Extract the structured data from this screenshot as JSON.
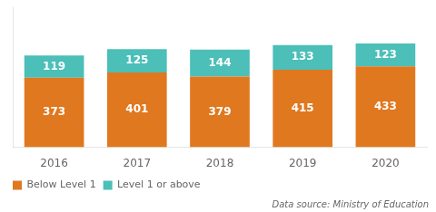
{
  "chart_data": {
    "type": "bar",
    "stacked": true,
    "categories": [
      "2016",
      "2017",
      "2018",
      "2019",
      "2020"
    ],
    "series": [
      {
        "name": "Below Level 1",
        "color": "#E07820",
        "values": [
          373,
          401,
          379,
          415,
          433
        ]
      },
      {
        "name": "Level 1 or above",
        "color": "#4BBFB8",
        "values": [
          119,
          125,
          144,
          133,
          123
        ]
      }
    ],
    "ylim": [
      0,
      750
    ],
    "tick_labels": "x",
    "grid": false,
    "legend": "lower left",
    "data_labels": true,
    "annotations": [
      "Data source: Ministry of Education"
    ]
  }
}
